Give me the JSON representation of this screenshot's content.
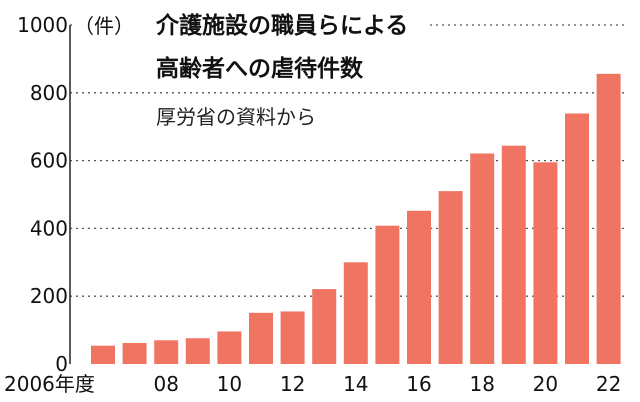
{
  "chart_data": {
    "type": "bar",
    "title_line1": "介護施設の職員らによる",
    "title_line2": "高齢者への虐待件数",
    "unit": "（件）",
    "source": "厚労省の資料から",
    "categories": [
      "2006",
      "2007",
      "2008",
      "2009",
      "2010",
      "2011",
      "2012",
      "2013",
      "2014",
      "2015",
      "2016",
      "2017",
      "2018",
      "2019",
      "2020",
      "2021",
      "2022"
    ],
    "values": [
      54,
      62,
      70,
      76,
      96,
      151,
      155,
      221,
      300,
      408,
      452,
      510,
      621,
      644,
      595,
      739,
      856
    ],
    "x_tick_labels": [
      {
        "index": 0,
        "label": "2006年度"
      },
      {
        "index": 2,
        "label": "08"
      },
      {
        "index": 4,
        "label": "10"
      },
      {
        "index": 6,
        "label": "12"
      },
      {
        "index": 8,
        "label": "14"
      },
      {
        "index": 10,
        "label": "16"
      },
      {
        "index": 12,
        "label": "18"
      },
      {
        "index": 14,
        "label": "20"
      },
      {
        "index": 16,
        "label": "22"
      }
    ],
    "y_ticks": [
      {
        "value": 0,
        "label": "0"
      },
      {
        "value": 200,
        "label": "200"
      },
      {
        "value": 400,
        "label": "400"
      },
      {
        "value": 600,
        "label": "600"
      },
      {
        "value": 800,
        "label": "800"
      },
      {
        "value": 1000,
        "label": "1000"
      }
    ],
    "ylim": [
      0,
      1000
    ],
    "grid": true,
    "colors": {
      "bar": "#f07462",
      "grid": "#555555"
    }
  }
}
